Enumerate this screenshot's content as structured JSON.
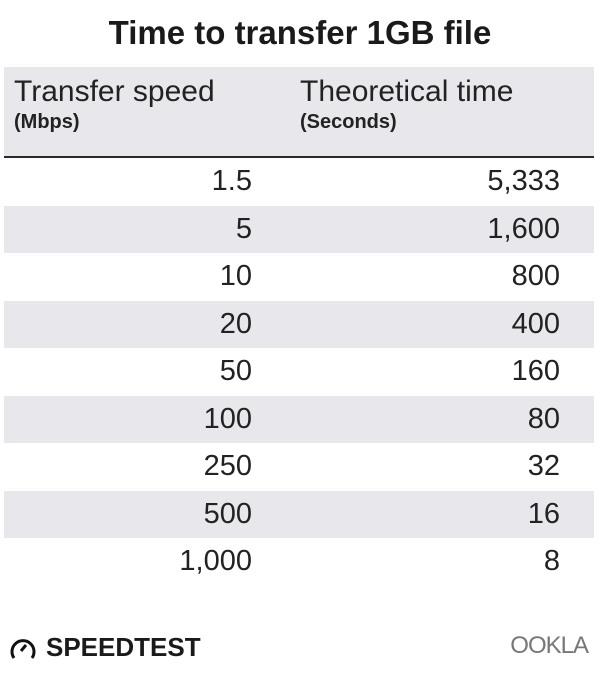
{
  "chart_data": {
    "type": "table",
    "title": "Time to transfer 1GB file",
    "columns": [
      {
        "label": "Transfer speed",
        "unit": "(Mbps)"
      },
      {
        "label": "Theoretical time",
        "unit": "(Seconds)"
      }
    ],
    "rows": [
      [
        "1.5",
        "5,333"
      ],
      [
        "5",
        "1,600"
      ],
      [
        "10",
        "800"
      ],
      [
        "20",
        "400"
      ],
      [
        "50",
        "160"
      ],
      [
        "100",
        "80"
      ],
      [
        "250",
        "32"
      ],
      [
        "500",
        "16"
      ],
      [
        "1,000",
        "8"
      ]
    ],
    "row_stripe_color": "#e8e8ec"
  },
  "footer": {
    "speedtest_logo": "SPEEDTEST",
    "ookla_logo": "OOKLA",
    "speedtest_icon": "gauge-icon"
  }
}
